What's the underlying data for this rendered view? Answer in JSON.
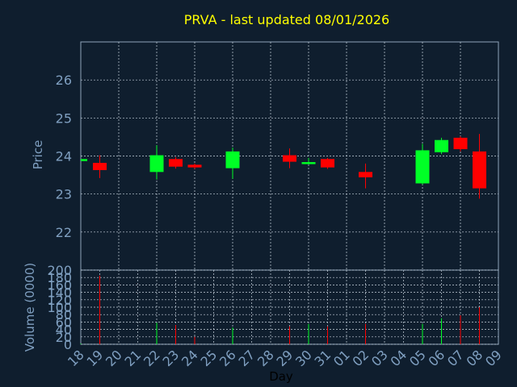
{
  "page": {
    "title": "PRVA - last updated 08/01/2026"
  },
  "colors": {
    "background": "#0f1e2e",
    "panel_border": "#8fa4ba",
    "grid": "#c8d3de",
    "axis_text": "#7f9fc0",
    "title": "#ffff00",
    "up": "#00ff26",
    "down": "#ff0000"
  },
  "chart_data": [
    {
      "type": "candlestick",
      "title": "PRVA - last updated 08/01/2026",
      "ylabel": "Price",
      "ylim": [
        21,
        27
      ],
      "yticks": [
        22,
        23,
        24,
        25,
        26
      ],
      "grid": true,
      "categories": [
        "18",
        "19",
        "20",
        "21",
        "22",
        "23",
        "24",
        "25",
        "26",
        "27",
        "28",
        "29",
        "30",
        "31",
        "01",
        "02",
        "03",
        "04",
        "05",
        "06",
        "07",
        "08",
        "09"
      ],
      "candles": [
        {
          "day": "18",
          "open": 23.92,
          "close": 23.92,
          "high": 23.92,
          "low": 23.92
        },
        {
          "day": "19",
          "open": 23.82,
          "close": 23.63,
          "high": 24.02,
          "low": 23.42
        },
        {
          "day": "22",
          "open": 23.58,
          "close": 24.02,
          "high": 24.28,
          "low": 23.38
        },
        {
          "day": "23",
          "open": 23.92,
          "close": 23.72,
          "high": 23.97,
          "low": 23.67
        },
        {
          "day": "24",
          "open": 23.77,
          "close": 23.7,
          "high": 23.8,
          "low": 23.66
        },
        {
          "day": "26",
          "open": 23.68,
          "close": 24.12,
          "high": 24.22,
          "low": 23.4
        },
        {
          "day": "29",
          "open": 24.02,
          "close": 23.85,
          "high": 24.2,
          "low": 23.68
        },
        {
          "day": "30",
          "open": 23.8,
          "close": 23.84,
          "high": 23.95,
          "low": 23.78
        },
        {
          "day": "31",
          "open": 23.92,
          "close": 23.7,
          "high": 23.95,
          "low": 23.66
        },
        {
          "day": "02",
          "open": 23.58,
          "close": 23.44,
          "high": 23.8,
          "low": 23.15
        },
        {
          "day": "05",
          "open": 23.28,
          "close": 24.15,
          "high": 24.32,
          "low": 23.25
        },
        {
          "day": "06",
          "open": 24.1,
          "close": 24.42,
          "high": 24.48,
          "low": 24.05
        },
        {
          "day": "07",
          "open": 24.48,
          "close": 24.18,
          "high": 24.52,
          "low": 24.12
        },
        {
          "day": "08",
          "open": 24.12,
          "close": 23.15,
          "high": 24.58,
          "low": 22.88
        }
      ]
    },
    {
      "type": "bar",
      "ylabel": "Volume (0000)",
      "xlabel": "Day",
      "ylim": [
        0,
        200
      ],
      "yticks": [
        0,
        20,
        40,
        60,
        80,
        100,
        120,
        140,
        160,
        180,
        200
      ],
      "grid": true,
      "categories": [
        "18",
        "19",
        "20",
        "21",
        "22",
        "23",
        "24",
        "25",
        "26",
        "27",
        "28",
        "29",
        "30",
        "31",
        "01",
        "02",
        "03",
        "04",
        "05",
        "06",
        "07",
        "08",
        "09"
      ],
      "bars": [
        {
          "day": "18",
          "value": 2,
          "direction": "up"
        },
        {
          "day": "19",
          "value": 185,
          "direction": "down"
        },
        {
          "day": "22",
          "value": 58,
          "direction": "up"
        },
        {
          "day": "23",
          "value": 52,
          "direction": "down"
        },
        {
          "day": "24",
          "value": 20,
          "direction": "down"
        },
        {
          "day": "26",
          "value": 45,
          "direction": "up"
        },
        {
          "day": "29",
          "value": 48,
          "direction": "down"
        },
        {
          "day": "30",
          "value": 55,
          "direction": "up"
        },
        {
          "day": "31",
          "value": 48,
          "direction": "down"
        },
        {
          "day": "02",
          "value": 55,
          "direction": "down"
        },
        {
          "day": "05",
          "value": 55,
          "direction": "up"
        },
        {
          "day": "06",
          "value": 70,
          "direction": "up"
        },
        {
          "day": "07",
          "value": 78,
          "direction": "down"
        },
        {
          "day": "08",
          "value": 100,
          "direction": "down"
        }
      ]
    }
  ]
}
